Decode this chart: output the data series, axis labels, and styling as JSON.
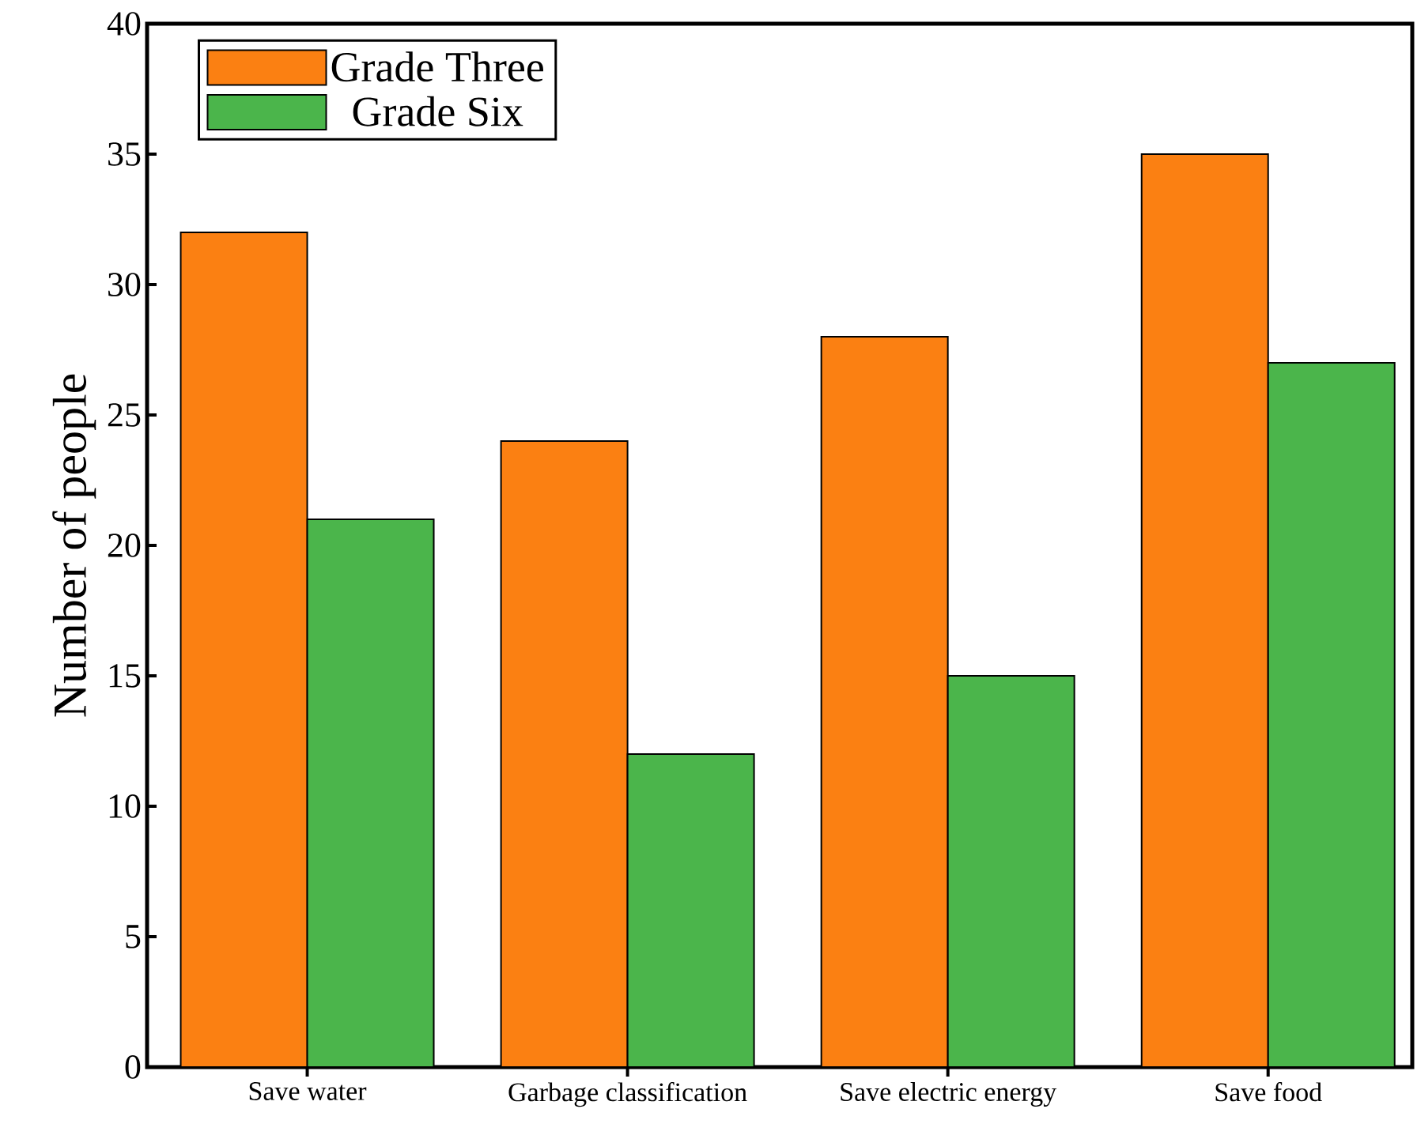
{
  "chart_data": {
    "type": "bar",
    "ylabel": "Number of people",
    "categories": [
      "Save water",
      "Garbage classification",
      "Save electric energy",
      "Save food"
    ],
    "series": [
      {
        "name": "Grade Three",
        "color": "#fb8012",
        "values": [
          32,
          24,
          28,
          35
        ]
      },
      {
        "name": "Grade Six",
        "color": "#4bb54b",
        "values": [
          21,
          12,
          15,
          27
        ]
      }
    ],
    "ylim": [
      0,
      40
    ],
    "yticks": [
      0,
      5,
      10,
      15,
      20,
      25,
      30,
      35,
      40
    ],
    "legend": "top left"
  }
}
